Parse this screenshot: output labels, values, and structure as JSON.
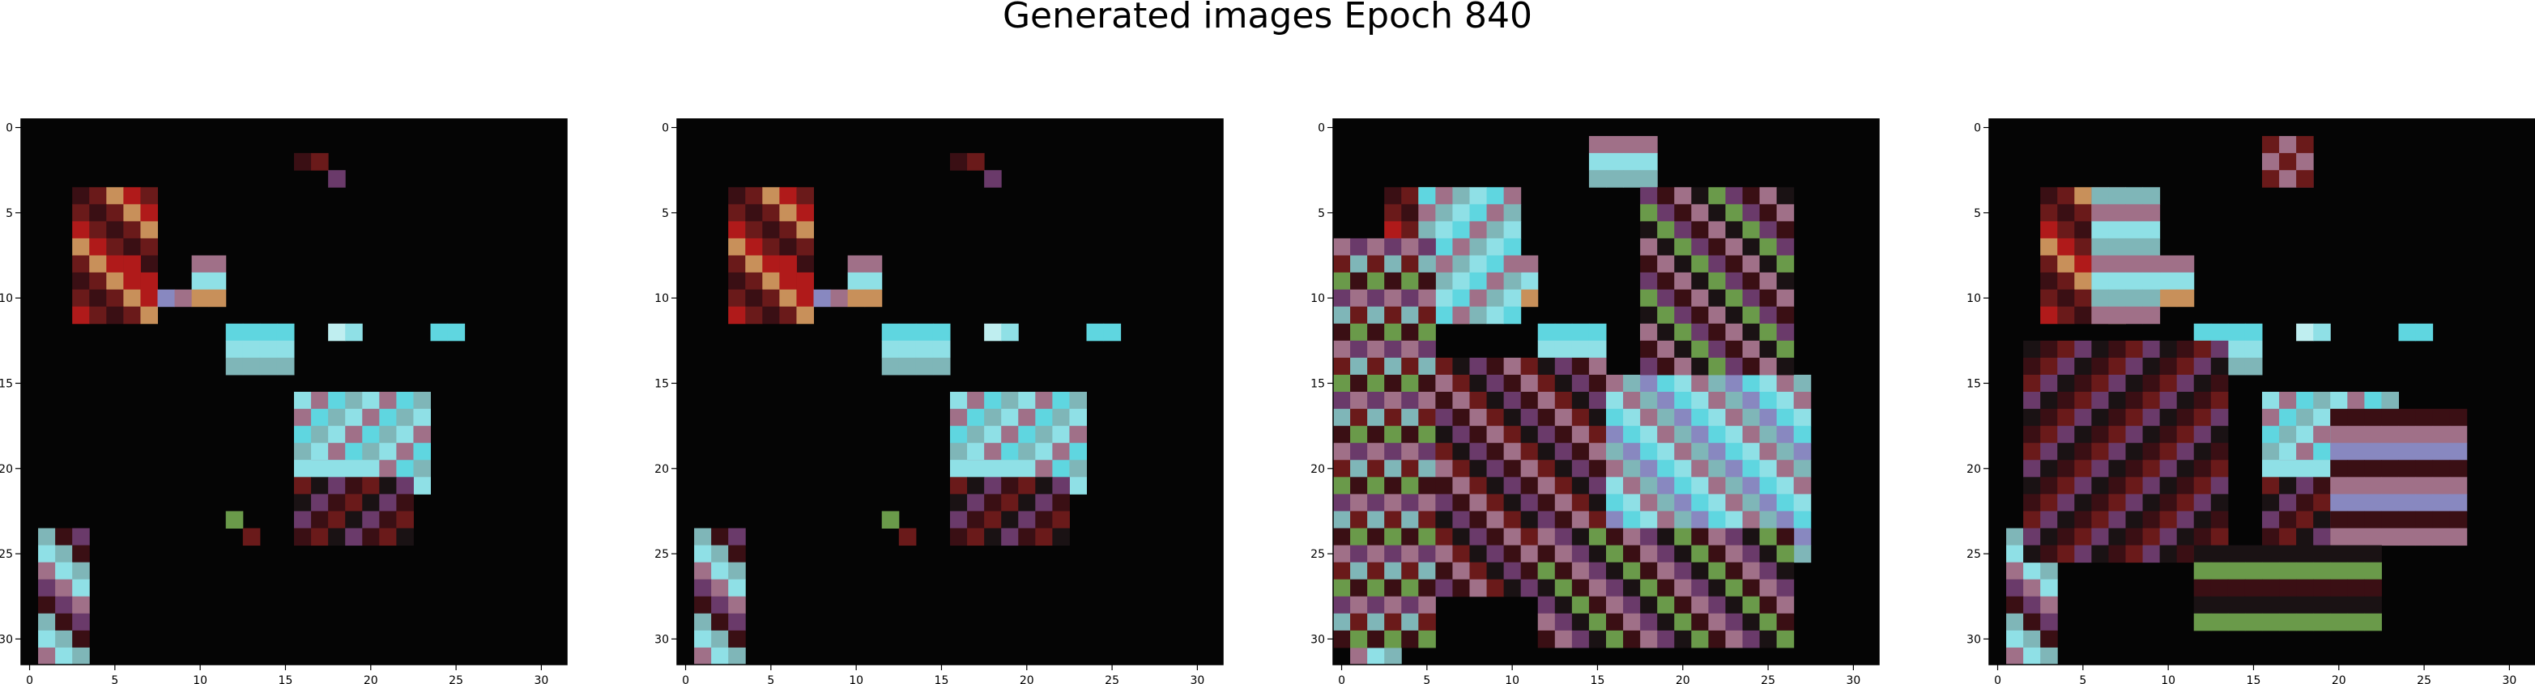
{
  "figure": {
    "title": "Generated images Epoch 840"
  },
  "panels": [
    {
      "name": "panel-1",
      "x_ticks": [
        "0",
        "5",
        "10",
        "15",
        "20",
        "25",
        "30"
      ],
      "y_ticks": [
        "0",
        "5",
        "10",
        "15",
        "20",
        "25",
        "30"
      ]
    },
    {
      "name": "panel-2",
      "x_ticks": [
        "0",
        "5",
        "10",
        "15",
        "20",
        "25",
        "30"
      ],
      "y_ticks": [
        "0",
        "5",
        "10",
        "15",
        "20",
        "25",
        "30"
      ]
    },
    {
      "name": "panel-3",
      "x_ticks": [
        "0",
        "5",
        "10",
        "15",
        "20",
        "25",
        "30"
      ],
      "y_ticks": [
        "0",
        "5",
        "10",
        "15",
        "20",
        "25",
        "30"
      ]
    },
    {
      "name": "panel-4",
      "x_ticks": [
        "0",
        "5",
        "10",
        "15",
        "20",
        "25",
        "30"
      ],
      "y_ticks": [
        "0",
        "5",
        "10",
        "15",
        "20",
        "25",
        "30"
      ]
    }
  ],
  "image_grid": {
    "rows": 32,
    "cols": 32,
    "background": "#050505"
  },
  "palette": {
    "cyan": "#5fd6e0",
    "cyan_light": "#8fe0e6",
    "cyan_pale": "#bfeef0",
    "teal_grey": "#7fb6b8",
    "red": "#b01a1a",
    "dark_red": "#6a1a1a",
    "maroon": "#3a0f14",
    "pink_grey": "#a07088",
    "orange_tan": "#c8905a",
    "lavender": "#8888c0",
    "green": "#6a9a4a",
    "purple": "#6a3a6a",
    "near_black": "#1a1214"
  }
}
